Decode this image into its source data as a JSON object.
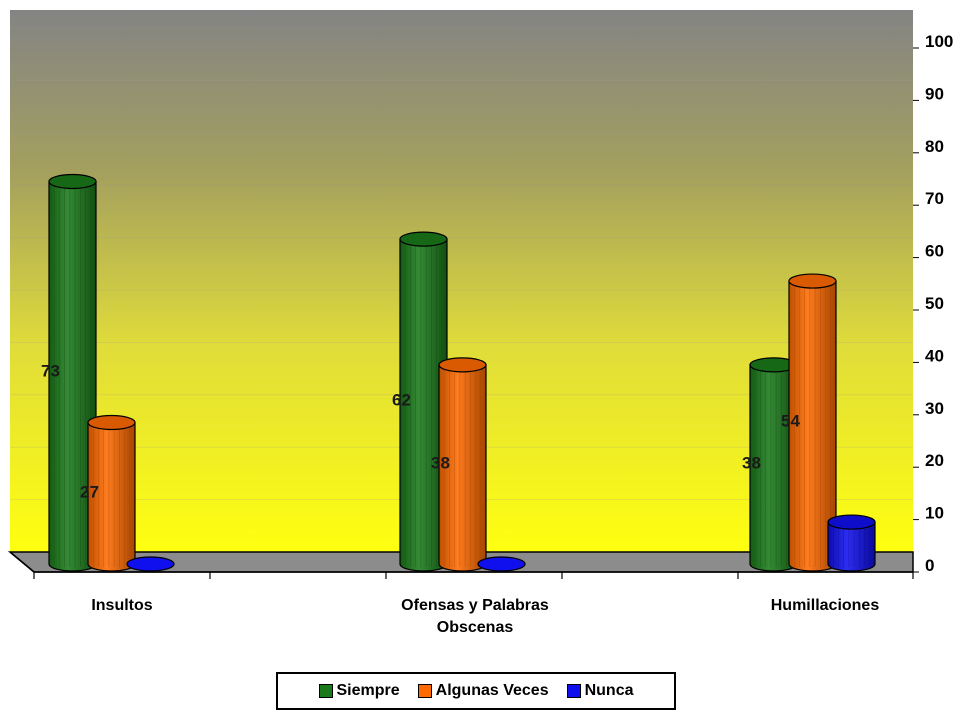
{
  "chart_data": {
    "type": "bar",
    "categories": [
      "Insultos",
      "Ofensas y Palabras Obscenas",
      "Humillaciones"
    ],
    "category_label_lines": [
      [
        "Insultos"
      ],
      [
        "Ofensas y Palabras",
        "Obscenas"
      ],
      [
        "Humillaciones"
      ]
    ],
    "series": [
      {
        "name": "Siempre",
        "values": [
          73,
          62,
          38
        ],
        "color": "#1a7a1a"
      },
      {
        "name": "Algunas Veces",
        "values": [
          27,
          38,
          54
        ],
        "color": "#ff6a00"
      },
      {
        "name": "Nunca",
        "values": [
          0,
          0,
          8
        ],
        "color": "#1010ee"
      }
    ],
    "data_labels": [
      {
        "series": 0,
        "category": 0,
        "text": "73"
      },
      {
        "series": 1,
        "category": 0,
        "text": "27"
      },
      {
        "series": 0,
        "category": 1,
        "text": "62"
      },
      {
        "series": 1,
        "category": 1,
        "text": "38"
      },
      {
        "series": 0,
        "category": 2,
        "text": "38"
      },
      {
        "series": 1,
        "category": 2,
        "text": "54"
      }
    ],
    "ylim": [
      0,
      100
    ],
    "y_ticks": [
      "0",
      "10",
      "20",
      "30",
      "40",
      "50",
      "60",
      "70",
      "80",
      "90",
      "100"
    ],
    "y_axis_side": "right",
    "bar_shape": "3d-cylinder",
    "background": {
      "top": "#848484",
      "bottom": "#ffff10"
    },
    "floor_color": "#8c8c8c",
    "legend_placement": "bottom"
  },
  "legend": {
    "items": [
      {
        "label": "Siempre",
        "color": "#1a7a1a"
      },
      {
        "label": "Algunas Veces",
        "color": "#ff6a00"
      },
      {
        "label": "Nunca",
        "color": "#1010ee"
      }
    ]
  }
}
